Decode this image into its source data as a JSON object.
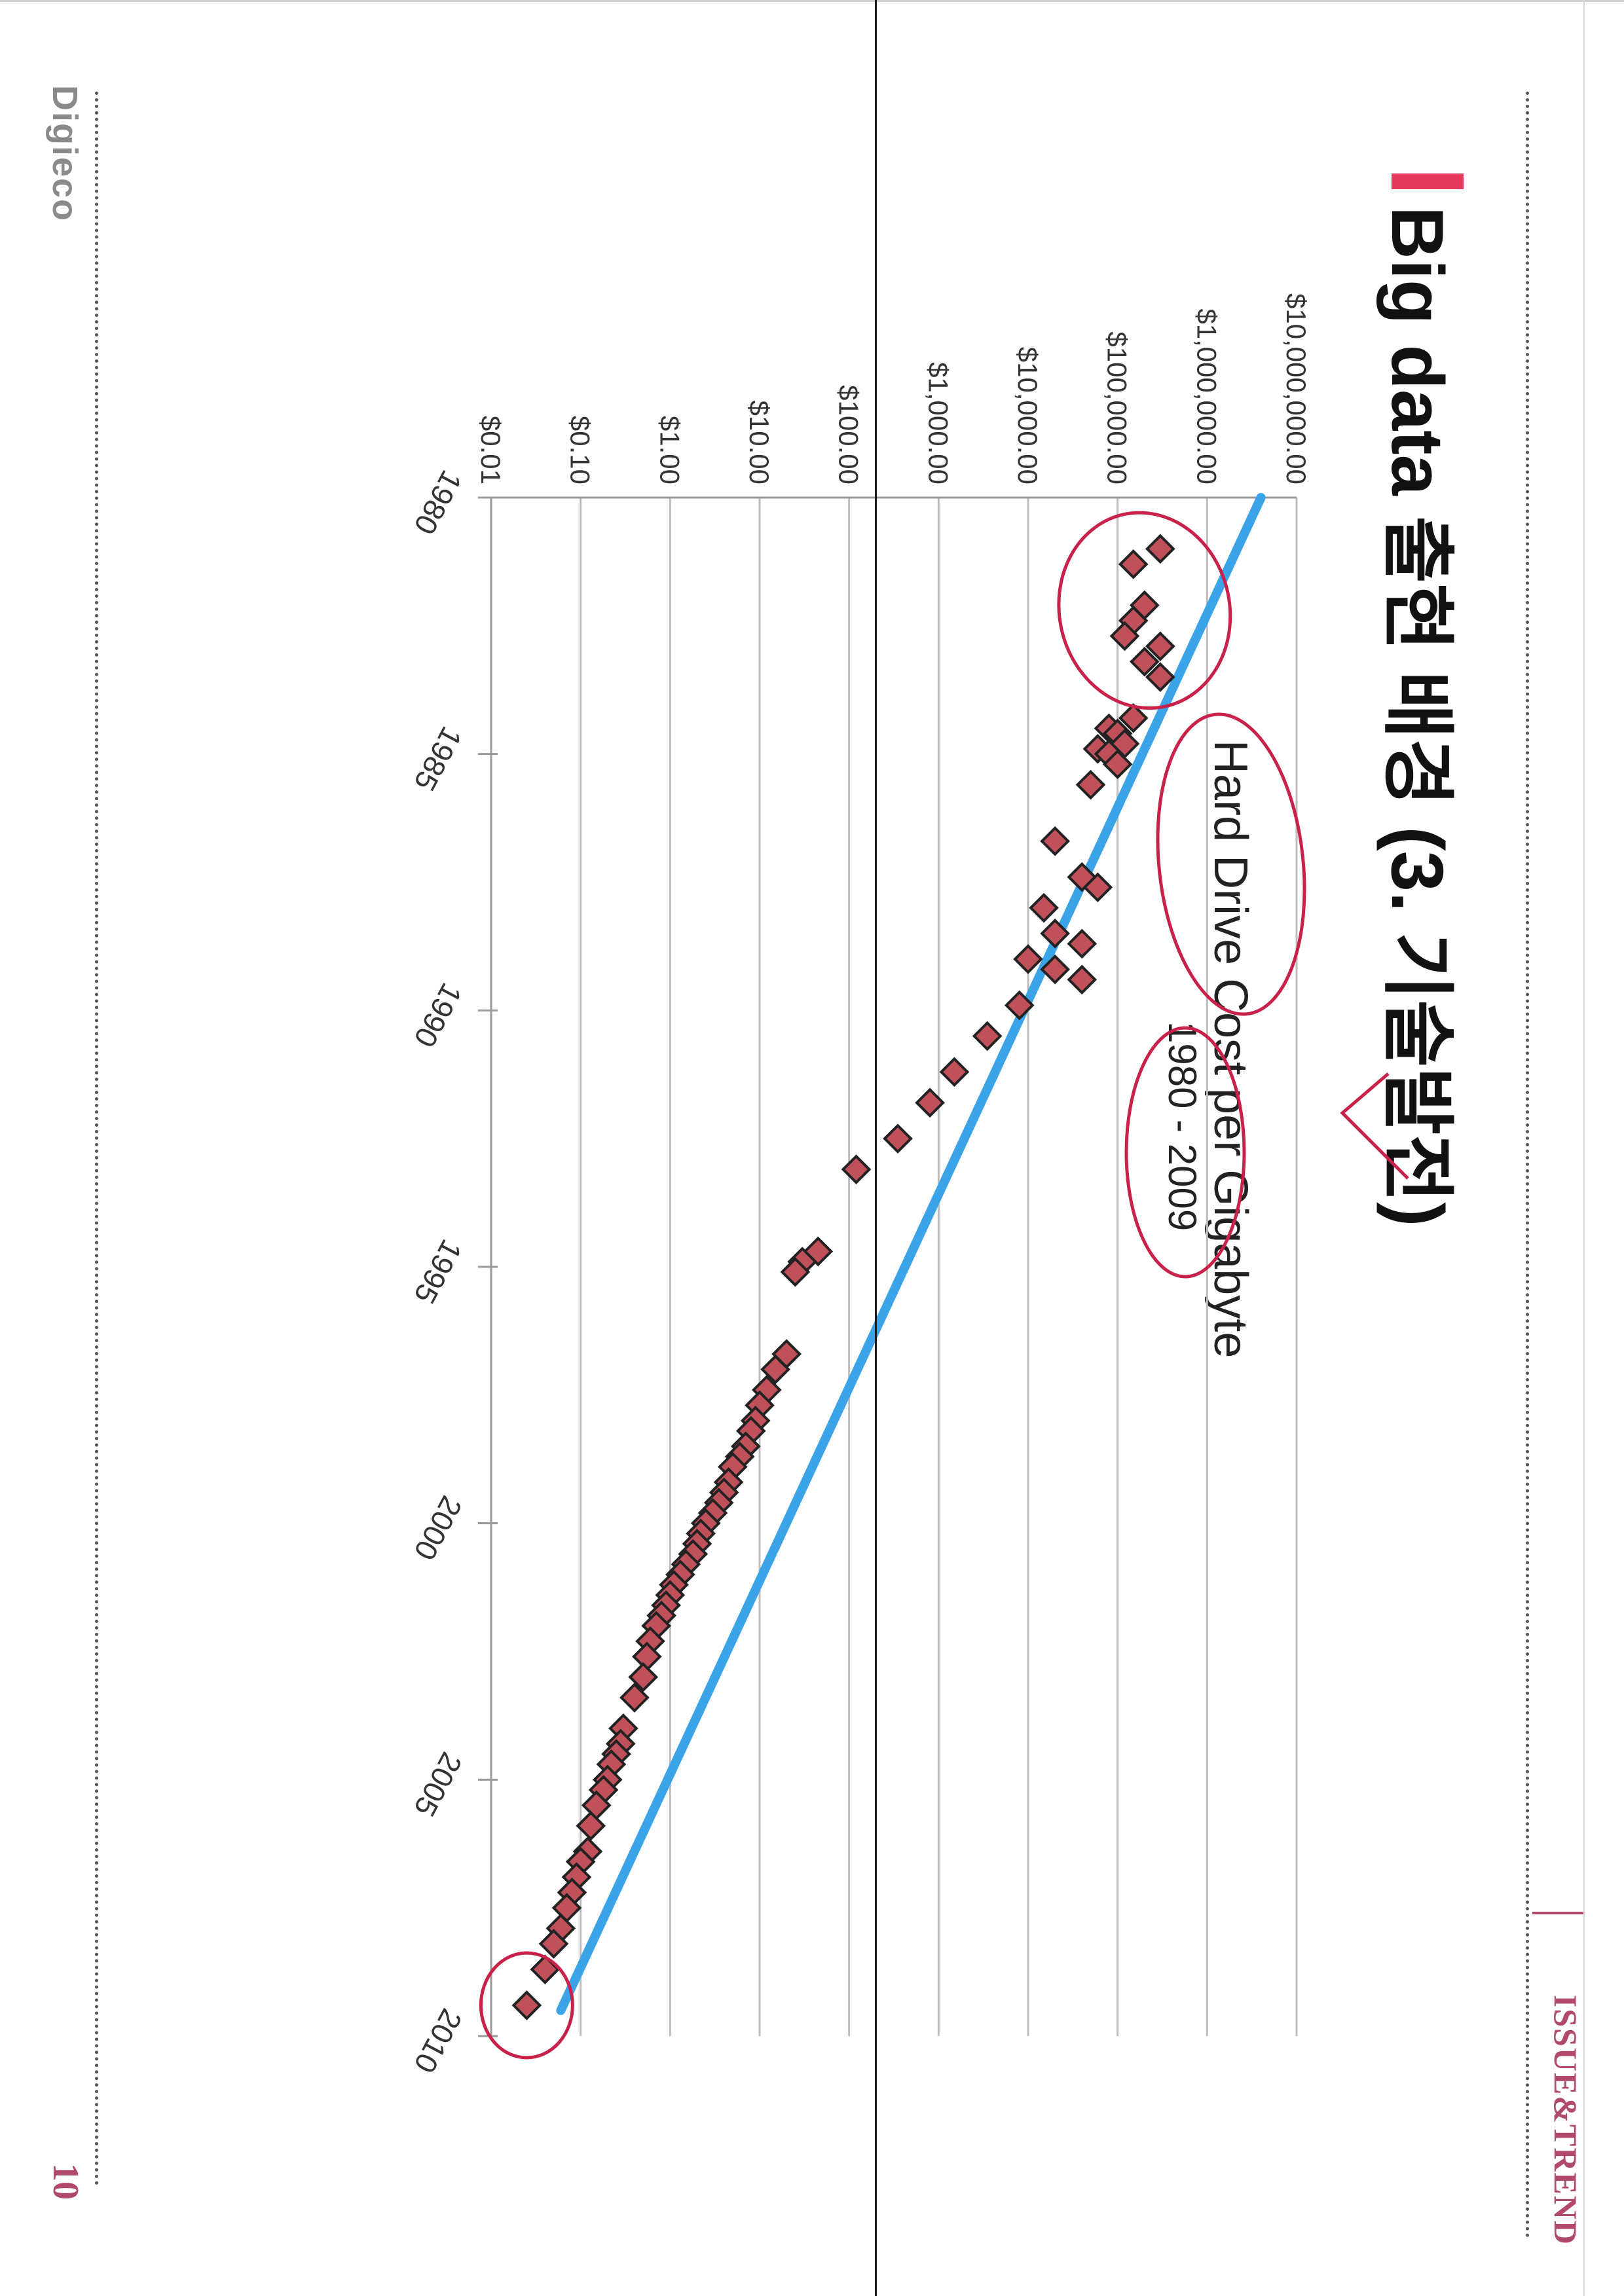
{
  "header": {
    "section": "ISSUE&TREND"
  },
  "footer": {
    "brand": "Digieco",
    "page_number": "10"
  },
  "title": "Big data 출현 배경 (3. 기술발전)",
  "chart_data": {
    "type": "scatter",
    "title": "Hard Drive Cost per Gigabyte",
    "subtitle": "1980 - 2009",
    "y_scale": "log",
    "xlim": [
      1980,
      2010
    ],
    "ylim": [
      0.01,
      10000000
    ],
    "x_ticks": [
      "1980",
      "1985",
      "1990",
      "1995",
      "2000",
      "2005",
      "2010"
    ],
    "y_ticks": [
      "$0.01",
      "$0.10",
      "$1.00",
      "$10.00",
      "$100.00",
      "$1,000.00",
      "$10,000.00",
      "$100,000.00",
      "$1,000,000.00",
      "$10,000,000.00"
    ],
    "series": [
      {
        "style": "points",
        "color": "#c0505a",
        "x": [
          1981.0,
          1981.3,
          1982.1,
          1982.4,
          1982.7,
          1982.9,
          1983.2,
          1983.5,
          1984.3,
          1984.5,
          1984.6,
          1984.8,
          1984.9,
          1985.0,
          1985.2,
          1985.6,
          1986.7,
          1987.4,
          1987.6,
          1988.0,
          1988.5,
          1988.7,
          1989.0,
          1989.2,
          1989.4,
          1989.9,
          1990.5,
          1991.2,
          1991.8,
          1992.5,
          1993.1,
          1994.7,
          1994.9,
          1995.1,
          1996.7,
          1997.0,
          1997.4,
          1997.7,
          1998.0,
          1998.2,
          1998.5,
          1998.7,
          1998.9,
          1999.2,
          1999.4,
          1999.6,
          1999.8,
          2000.0,
          2000.2,
          2000.4,
          2000.6,
          2000.8,
          2001.0,
          2001.2,
          2001.4,
          2001.6,
          2001.8,
          2002.0,
          2002.3,
          2002.6,
          2003.0,
          2003.4,
          2004.0,
          2004.3,
          2004.5,
          2004.7,
          2005.0,
          2005.2,
          2005.5,
          2005.9,
          2006.4,
          2006.6,
          2006.9,
          2007.2,
          2007.5,
          2007.9,
          2008.2,
          2008.7,
          2009.4
        ],
        "y": [
          300000,
          150000,
          200000,
          150000,
          120000,
          300000,
          200000,
          300000,
          150000,
          80000,
          100000,
          120000,
          60000,
          80000,
          100000,
          50000,
          20000,
          40000,
          60000,
          15000,
          20000,
          40000,
          10000,
          20000,
          40000,
          8000,
          3500,
          1500,
          800,
          350,
          120,
          45,
          30,
          25,
          20,
          15,
          12,
          10,
          9,
          8,
          7,
          6,
          5,
          4.5,
          4,
          3.5,
          3,
          2.5,
          2.2,
          2,
          1.8,
          1.5,
          1.3,
          1.1,
          1.0,
          0.9,
          0.8,
          0.7,
          0.6,
          0.55,
          0.5,
          0.4,
          0.3,
          0.28,
          0.25,
          0.22,
          0.2,
          0.18,
          0.15,
          0.13,
          0.12,
          0.1,
          0.09,
          0.08,
          0.07,
          0.06,
          0.05,
          0.04,
          0.025
        ]
      },
      {
        "style": "trendline",
        "color": "#3ba3e8",
        "x": [
          1980,
          2009.5
        ],
        "y": [
          4000000,
          0.06
        ]
      }
    ]
  }
}
